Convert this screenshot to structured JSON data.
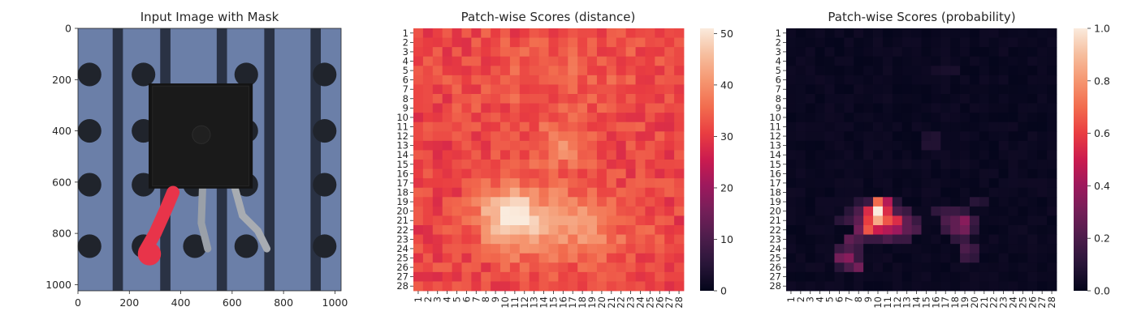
{
  "figure": {
    "panels": [
      {
        "title": "Input Image with Mask"
      },
      {
        "title": "Patch-wise Scores (distance)"
      },
      {
        "title": "Patch-wise Scores (probability)"
      }
    ]
  },
  "chart_data": [
    {
      "type": "image",
      "title": "Input Image with Mask",
      "xlim": [
        0,
        1024
      ],
      "ylim": [
        1024,
        0
      ],
      "xticks": [
        0,
        200,
        400,
        600,
        800,
        1000
      ],
      "yticks": [
        0,
        200,
        400,
        600,
        800,
        1000
      ],
      "grid": false,
      "image": {
        "background_color": "#6b7fa8",
        "dark_strip_color": "#1f2532",
        "dark_strip_x_ranges": [
          [
            135,
            175
          ],
          [
            320,
            360
          ],
          [
            540,
            580
          ],
          [
            725,
            765
          ],
          [
            905,
            945
          ]
        ],
        "hole_color": "#20242c",
        "hole_radius": 46,
        "holes": [
          [
            45,
            180
          ],
          [
            45,
            400
          ],
          [
            45,
            610
          ],
          [
            45,
            850
          ],
          [
            255,
            180
          ],
          [
            255,
            400
          ],
          [
            255,
            610
          ],
          [
            255,
            850
          ],
          [
            455,
            610
          ],
          [
            455,
            850
          ],
          [
            655,
            180
          ],
          [
            655,
            400
          ],
          [
            655,
            610
          ],
          [
            655,
            850
          ],
          [
            960,
            180
          ],
          [
            960,
            400
          ],
          [
            960,
            610
          ],
          [
            960,
            850
          ]
        ],
        "component_body_color": "#141414",
        "component_body": [
          275,
          215,
          680,
          625
        ],
        "mask_color": "#e8344a"
      }
    },
    {
      "type": "heatmap",
      "title": "Patch-wise Scores (distance)",
      "rows": 28,
      "cols": 28,
      "xticklabels": [
        "1",
        "2",
        "3",
        "4",
        "5",
        "6",
        "7",
        "8",
        "9",
        "10",
        "11",
        "12",
        "13",
        "14",
        "15",
        "16",
        "17",
        "18",
        "19",
        "20",
        "21",
        "22",
        "23",
        "24",
        "25",
        "26",
        "27",
        "28"
      ],
      "yticklabels": [
        "1",
        "2",
        "3",
        "4",
        "5",
        "6",
        "7",
        "8",
        "9",
        "10",
        "11",
        "12",
        "13",
        "14",
        "15",
        "16",
        "17",
        "18",
        "19",
        "20",
        "21",
        "22",
        "23",
        "24",
        "25",
        "26",
        "27",
        "28"
      ],
      "colormap": "rocket",
      "vmin": 0,
      "vmax": 51,
      "colorbar_ticks": [
        0,
        10,
        20,
        30,
        40,
        50
      ],
      "base_value": 31,
      "bright_regions": [
        {
          "row": 20.5,
          "col": 10.5,
          "sigma_r": 2.0,
          "sigma_c": 2.0,
          "amp": 17
        },
        {
          "row": 21.5,
          "col": 15.5,
          "sigma_r": 3.0,
          "sigma_c": 5.0,
          "amp": 10
        },
        {
          "row": 13.0,
          "col": 15.5,
          "sigma_r": 1.5,
          "sigma_c": 2.0,
          "amp": 7
        },
        {
          "row": 6.0,
          "col": 16.0,
          "sigma_r": 4.0,
          "sigma_c": 8.0,
          "amp": 3
        }
      ],
      "noise_amplitude": 3.5,
      "range_observed": [
        22,
        51
      ]
    },
    {
      "type": "heatmap",
      "title": "Patch-wise Scores (probability)",
      "rows": 28,
      "cols": 28,
      "xticklabels": [
        "1",
        "2",
        "3",
        "4",
        "5",
        "6",
        "7",
        "8",
        "9",
        "10",
        "11",
        "12",
        "13",
        "14",
        "15",
        "16",
        "17",
        "18",
        "19",
        "20",
        "21",
        "22",
        "23",
        "24",
        "25",
        "26",
        "27",
        "28"
      ],
      "yticklabels": [
        "1",
        "2",
        "3",
        "4",
        "5",
        "6",
        "7",
        "8",
        "9",
        "10",
        "11",
        "12",
        "13",
        "14",
        "15",
        "16",
        "17",
        "18",
        "19",
        "20",
        "21",
        "22",
        "23",
        "24",
        "25",
        "26",
        "27",
        "28"
      ],
      "colormap": "rocket",
      "vmin": 0.0,
      "vmax": 1.0,
      "colorbar_ticks": [
        0.0,
        0.2,
        0.4,
        0.6,
        0.8,
        1.0
      ],
      "colorbar_tick_labels": [
        "0.0",
        "0.2",
        "0.4",
        "0.6",
        "0.8",
        "1.0"
      ],
      "cells": [
        {
          "row": 19,
          "col": 10,
          "value": 0.7
        },
        {
          "row": 19,
          "col": 11,
          "value": 0.45
        },
        {
          "row": 20,
          "col": 9,
          "value": 0.55
        },
        {
          "row": 20,
          "col": 10,
          "value": 1.0
        },
        {
          "row": 20,
          "col": 11,
          "value": 0.55
        },
        {
          "row": 21,
          "col": 9,
          "value": 0.6
        },
        {
          "row": 21,
          "col": 10,
          "value": 0.85
        },
        {
          "row": 21,
          "col": 11,
          "value": 0.65
        },
        {
          "row": 21,
          "col": 12,
          "value": 0.55
        },
        {
          "row": 21,
          "col": 13,
          "value": 0.25
        },
        {
          "row": 22,
          "col": 8,
          "value": 0.3
        },
        {
          "row": 22,
          "col": 9,
          "value": 0.65
        },
        {
          "row": 22,
          "col": 10,
          "value": 0.5
        },
        {
          "row": 22,
          "col": 11,
          "value": 0.45
        },
        {
          "row": 22,
          "col": 12,
          "value": 0.4
        },
        {
          "row": 22,
          "col": 13,
          "value": 0.25
        },
        {
          "row": 22,
          "col": 14,
          "value": 0.2
        },
        {
          "row": 19,
          "col": 8,
          "value": 0.1
        },
        {
          "row": 19,
          "col": 9,
          "value": 0.15
        },
        {
          "row": 19,
          "col": 12,
          "value": 0.1
        },
        {
          "row": 20,
          "col": 7,
          "value": 0.1
        },
        {
          "row": 20,
          "col": 8,
          "value": 0.2
        },
        {
          "row": 20,
          "col": 12,
          "value": 0.2
        },
        {
          "row": 20,
          "col": 13,
          "value": 0.15
        },
        {
          "row": 21,
          "col": 6,
          "value": 0.1
        },
        {
          "row": 21,
          "col": 7,
          "value": 0.15
        },
        {
          "row": 21,
          "col": 8,
          "value": 0.25
        },
        {
          "row": 21,
          "col": 14,
          "value": 0.15
        },
        {
          "row": 23,
          "col": 7,
          "value": 0.25
        },
        {
          "row": 23,
          "col": 8,
          "value": 0.2
        },
        {
          "row": 23,
          "col": 9,
          "value": 0.15
        },
        {
          "row": 23,
          "col": 10,
          "value": 0.15
        },
        {
          "row": 23,
          "col": 11,
          "value": 0.2
        },
        {
          "row": 23,
          "col": 12,
          "value": 0.15
        },
        {
          "row": 23,
          "col": 13,
          "value": 0.15
        },
        {
          "row": 24,
          "col": 6,
          "value": 0.15
        },
        {
          "row": 24,
          "col": 7,
          "value": 0.2
        },
        {
          "row": 24,
          "col": 8,
          "value": 0.15
        },
        {
          "row": 25,
          "col": 6,
          "value": 0.3
        },
        {
          "row": 25,
          "col": 7,
          "value": 0.35
        },
        {
          "row": 25,
          "col": 8,
          "value": 0.15
        },
        {
          "row": 26,
          "col": 6,
          "value": 0.1
        },
        {
          "row": 26,
          "col": 7,
          "value": 0.2
        },
        {
          "row": 26,
          "col": 8,
          "value": 0.3
        },
        {
          "row": 20,
          "col": 16,
          "value": 0.12
        },
        {
          "row": 20,
          "col": 17,
          "value": 0.15
        },
        {
          "row": 20,
          "col": 18,
          "value": 0.15
        },
        {
          "row": 20,
          "col": 19,
          "value": 0.12
        },
        {
          "row": 21,
          "col": 17,
          "value": 0.2
        },
        {
          "row": 21,
          "col": 18,
          "value": 0.25
        },
        {
          "row": 21,
          "col": 19,
          "value": 0.35
        },
        {
          "row": 21,
          "col": 20,
          "value": 0.15
        },
        {
          "row": 22,
          "col": 17,
          "value": 0.15
        },
        {
          "row": 22,
          "col": 18,
          "value": 0.25
        },
        {
          "row": 22,
          "col": 19,
          "value": 0.3
        },
        {
          "row": 22,
          "col": 20,
          "value": 0.12
        },
        {
          "row": 23,
          "col": 18,
          "value": 0.12
        },
        {
          "row": 23,
          "col": 19,
          "value": 0.15
        },
        {
          "row": 24,
          "col": 19,
          "value": 0.2
        },
        {
          "row": 24,
          "col": 20,
          "value": 0.15
        },
        {
          "row": 25,
          "col": 19,
          "value": 0.15
        },
        {
          "row": 25,
          "col": 20,
          "value": 0.12
        },
        {
          "row": 19,
          "col": 20,
          "value": 0.1
        },
        {
          "row": 19,
          "col": 21,
          "value": 0.08
        },
        {
          "row": 12,
          "col": 15,
          "value": 0.07
        },
        {
          "row": 12,
          "col": 16,
          "value": 0.08
        },
        {
          "row": 13,
          "col": 15,
          "value": 0.08
        },
        {
          "row": 13,
          "col": 16,
          "value": 0.08
        },
        {
          "row": 5,
          "col": 16,
          "value": 0.05
        },
        {
          "row": 5,
          "col": 17,
          "value": 0.06
        },
        {
          "row": 5,
          "col": 18,
          "value": 0.06
        }
      ],
      "base_value": 0.02
    }
  ]
}
